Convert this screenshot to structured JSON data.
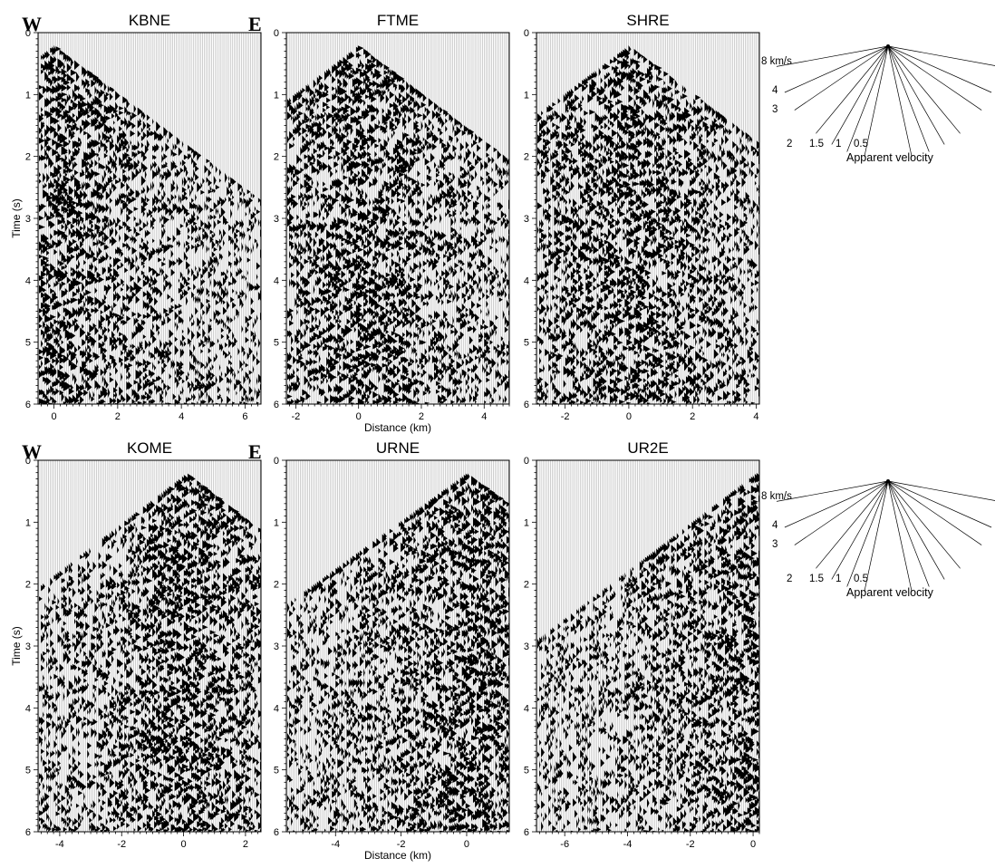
{
  "figure": {
    "y_axis_label": "Time (s)",
    "x_axis_label": "Distance (km)",
    "direction_labels": {
      "west": "W",
      "east": "E"
    },
    "panels": [
      {
        "title": "KBNE",
        "row": 0,
        "col": 0,
        "x_range": [
          -0.5,
          6.5
        ],
        "x_ticks": [
          0,
          2,
          4,
          6
        ],
        "y_range": [
          0,
          6
        ],
        "y_ticks": [
          0,
          1,
          2,
          3,
          4,
          5,
          6
        ],
        "apex_km": 0,
        "show_direction": true,
        "show_ylabel": true,
        "show_xlabel": false
      },
      {
        "title": "FTME",
        "row": 0,
        "col": 1,
        "x_range": [
          -2.3,
          4.8
        ],
        "x_ticks": [
          -2,
          0,
          2,
          4
        ],
        "y_range": [
          0,
          6
        ],
        "y_ticks": [
          0,
          1,
          2,
          3,
          4,
          5,
          6
        ],
        "apex_km": 0,
        "show_direction": false,
        "show_ylabel": false,
        "show_xlabel": true
      },
      {
        "title": "SHRE",
        "row": 0,
        "col": 2,
        "x_range": [
          -2.9,
          4.1
        ],
        "x_ticks": [
          -2,
          0,
          2,
          4
        ],
        "y_range": [
          0,
          6
        ],
        "y_ticks": [
          0,
          1,
          2,
          3,
          4,
          5,
          6
        ],
        "apex_km": 0,
        "show_direction": false,
        "show_ylabel": false,
        "show_xlabel": false
      },
      {
        "title": "KOME",
        "row": 1,
        "col": 0,
        "x_range": [
          -4.7,
          2.5
        ],
        "x_ticks": [
          -4,
          -2,
          0,
          2
        ],
        "y_range": [
          0,
          6
        ],
        "y_ticks": [
          0,
          1,
          2,
          3,
          4,
          5,
          6
        ],
        "apex_km": 0.1,
        "show_direction": true,
        "show_ylabel": true,
        "show_xlabel": false
      },
      {
        "title": "URNE",
        "row": 1,
        "col": 1,
        "x_range": [
          -5.5,
          1.3
        ],
        "x_ticks": [
          -4,
          -2,
          0
        ],
        "y_range": [
          0,
          6
        ],
        "y_ticks": [
          0,
          1,
          2,
          3,
          4,
          5,
          6
        ],
        "apex_km": 0,
        "show_direction": false,
        "show_ylabel": false,
        "show_xlabel": true
      },
      {
        "title": "UR2E",
        "row": 1,
        "col": 2,
        "x_range": [
          -6.9,
          0.2
        ],
        "x_ticks": [
          -6,
          -4,
          -2,
          0
        ],
        "y_range": [
          0,
          6
        ],
        "y_ticks": [
          0,
          1,
          2,
          3,
          4,
          5,
          6
        ],
        "apex_km": 0.1,
        "show_direction": false,
        "show_ylabel": false,
        "show_xlabel": false
      }
    ],
    "velocity_legends": [
      {
        "row": 0,
        "title": "Apparent velocity",
        "labels": [
          {
            "text": "8 km/s",
            "velocity": 8
          },
          {
            "text": "4",
            "velocity": 4
          },
          {
            "text": "3",
            "velocity": 3
          },
          {
            "text": "2",
            "velocity": 2
          },
          {
            "text": "1.5",
            "velocity": 1.5
          },
          {
            "text": "1",
            "velocity": 1
          },
          {
            "text": "0.5",
            "velocity": 0.5
          }
        ]
      },
      {
        "row": 1,
        "title": "Apparent velocity",
        "labels": [
          {
            "text": "8 km/s",
            "velocity": 8
          },
          {
            "text": "4",
            "velocity": 4
          },
          {
            "text": "3",
            "velocity": 3
          },
          {
            "text": "2",
            "velocity": 2
          },
          {
            "text": "1.5",
            "velocity": 1.5
          },
          {
            "text": "1",
            "velocity": 1
          },
          {
            "text": "0.5",
            "velocity": 0.5
          }
        ]
      }
    ]
  }
}
